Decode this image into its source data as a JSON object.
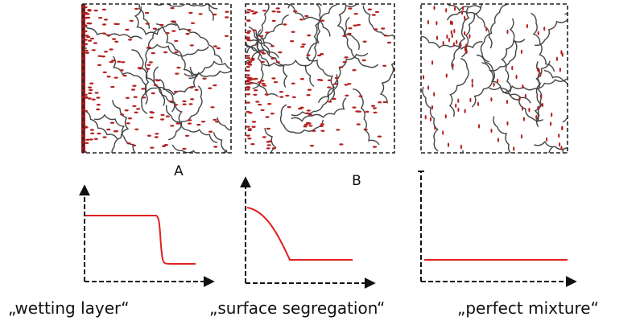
{
  "panels": [
    {
      "letter": "A",
      "caption": "„wetting layer“"
    },
    {
      "letter": "B",
      "caption": "„surface segregation“"
    },
    {
      "caption": "„perfect mixture“"
    }
  ]
}
